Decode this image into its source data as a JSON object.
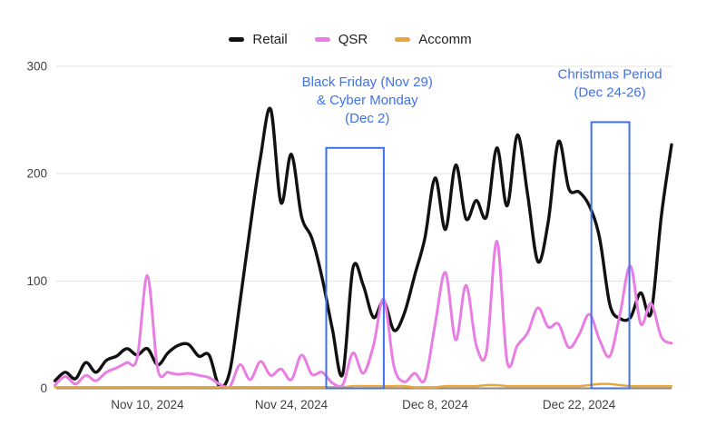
{
  "page": {
    "background": "#ffffff"
  },
  "legend": {
    "position": "top-center",
    "items": [
      {
        "label": "Retail",
        "color": "#111111"
      },
      {
        "label": "QSR",
        "color": "#e87de3"
      },
      {
        "label": "Accomm",
        "color": "#e6a83c"
      }
    ]
  },
  "colors": {
    "annotation_blue": "#3e71ee",
    "gridline": "#e3e3e3",
    "axis_line": "#8a8a8a",
    "tick_text": "#3f3f3f"
  },
  "chart_data": {
    "type": "line",
    "title": "",
    "xlabel": "",
    "ylabel": "",
    "grid": "horizontal",
    "legend_position": "top-center",
    "x_frequency": "daily",
    "x_tick_labels": [
      {
        "index": 9,
        "label": "Nov 10, 2024"
      },
      {
        "index": 23,
        "label": "Nov 24, 2024"
      },
      {
        "index": 37,
        "label": "Dec 8, 2024"
      },
      {
        "index": 51,
        "label": "Dec 22, 2024"
      }
    ],
    "y_ticks": [
      0,
      100,
      200,
      300
    ],
    "ylim": [
      0,
      300
    ],
    "series": [
      {
        "name": "Retail",
        "color": "#111111",
        "stroke_width": 3.4,
        "values": [
          7,
          15,
          9,
          24,
          15,
          26,
          30,
          37,
          31,
          37,
          22,
          33,
          40,
          41,
          30,
          31,
          2,
          15,
          80,
          150,
          215,
          260,
          173,
          218,
          160,
          140,
          103,
          55,
          13,
          112,
          96,
          66,
          81,
          54,
          70,
          105,
          140,
          196,
          148,
          208,
          158,
          175,
          160,
          224,
          170,
          236,
          180,
          118,
          155,
          230,
          186,
          183,
          170,
          140,
          78,
          65,
          66,
          89,
          70,
          160,
          227
        ]
      },
      {
        "name": "QSR",
        "color": "#e87de3",
        "stroke_width": 3,
        "values": [
          3,
          11,
          4,
          12,
          7,
          15,
          19,
          24,
          28,
          105,
          18,
          15,
          13,
          14,
          12,
          10,
          4,
          1,
          22,
          8,
          25,
          12,
          18,
          8,
          31,
          13,
          15,
          5,
          3,
          33,
          14,
          40,
          83,
          20,
          6,
          14,
          8,
          60,
          108,
          45,
          96,
          40,
          34,
          137,
          25,
          40,
          52,
          75,
          57,
          60,
          38,
          50,
          69,
          45,
          30,
          70,
          114,
          60,
          79,
          48,
          42
        ]
      },
      {
        "name": "Accomm",
        "color": "#e6a83c",
        "stroke_width": 2.5,
        "values": [
          1,
          1,
          1,
          1,
          1,
          1,
          1,
          1,
          1,
          1,
          1,
          1,
          1,
          1,
          1,
          1,
          1,
          1,
          1,
          1,
          1,
          1,
          1,
          1,
          1,
          1,
          1,
          1,
          1,
          2,
          2,
          2,
          2,
          2,
          2,
          1,
          1,
          1,
          2,
          2,
          2,
          2,
          3,
          3,
          2,
          2,
          2,
          2,
          2,
          2,
          2,
          2,
          3,
          4,
          4,
          3,
          2,
          2,
          2,
          2,
          2
        ]
      }
    ],
    "annotations": [
      {
        "id": "black-friday-cyber-monday",
        "lines": [
          "Black Friday (Nov 29)",
          "& Cyber Monday",
          "(Dec 2)"
        ],
        "color": "#3e71ee",
        "box_day_start": 26.4,
        "box_day_end": 32.0,
        "box_value_top": 224,
        "box_value_bottom": 0,
        "label_center_day": 30.4
      },
      {
        "id": "christmas-period",
        "lines": [
          "Christmas Period",
          "(Dec 24-26)"
        ],
        "color": "#3e71ee",
        "box_day_start": 52.2,
        "box_day_end": 55.9,
        "box_value_top": 248,
        "box_value_bottom": 0,
        "label_center_day": 54.0
      }
    ]
  }
}
